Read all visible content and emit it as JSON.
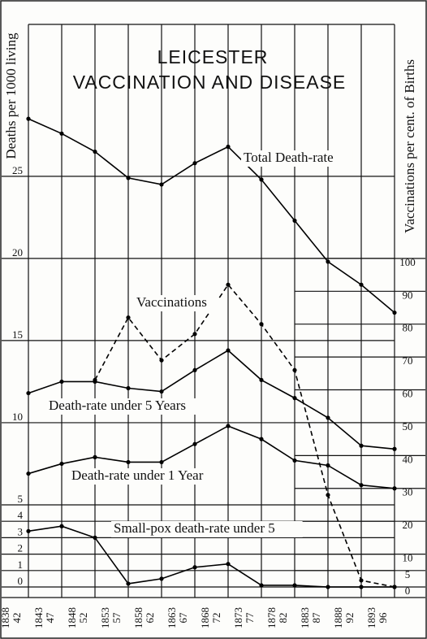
{
  "chart_data": {
    "type": "line",
    "title": "LEICESTER",
    "subtitle": "VACCINATION AND DISEASE",
    "y_label": "Deaths per 1000 living",
    "y2_label": "Vaccinations per cent. of Births",
    "categories": [
      "1838",
      "1843",
      "1848",
      "1853",
      "1858",
      "1863",
      "1868",
      "1873",
      "1878",
      "1883",
      "1888",
      "1893"
    ],
    "category_ends": [
      "42",
      "47",
      "52",
      "57",
      "62",
      "67",
      "72",
      "77",
      "82",
      "87",
      "92",
      "96"
    ],
    "ylim": [
      0,
      34
    ],
    "yticks": [
      0,
      1,
      2,
      3,
      4,
      5,
      10,
      15,
      20,
      25
    ],
    "y2lim": [
      0,
      170
    ],
    "y2ticks": [
      0,
      5,
      10,
      20,
      30,
      40,
      50,
      60,
      70,
      80,
      90,
      100
    ],
    "grid": true,
    "series": [
      {
        "name": "Total Death-rate",
        "color": "#000000",
        "values": [
          28.5,
          27.6,
          26.5,
          24.9,
          24.5,
          25.8,
          26.8,
          24.8,
          22.3,
          19.8,
          18.4,
          16.7
        ]
      },
      {
        "name": "Vaccinations",
        "color": "#000000",
        "axis": "y2",
        "dashed": true,
        "values": [
          null,
          null,
          63,
          82,
          69,
          77,
          92,
          80,
          66,
          28,
          2,
          0
        ]
      },
      {
        "name": "Death-rate under 5 Years",
        "color": "#000000",
        "values": [
          11.8,
          12.5,
          12.5,
          12.1,
          11.9,
          13.2,
          14.4,
          12.6,
          11.5,
          10.3,
          8.6,
          8.4
        ]
      },
      {
        "name": "Death-rate under 1 Year",
        "color": "#000000",
        "values": [
          6.9,
          7.5,
          7.9,
          7.6,
          7.6,
          8.7,
          9.8,
          9.0,
          7.7,
          7.4,
          6.2,
          6.0
        ]
      },
      {
        "name": "Small-pox death-rate under 5",
        "color": "#000000",
        "values": [
          3.4,
          3.7,
          3.0,
          0.2,
          0.5,
          1.2,
          1.4,
          0.1,
          0.1,
          0,
          0,
          0
        ]
      }
    ]
  }
}
